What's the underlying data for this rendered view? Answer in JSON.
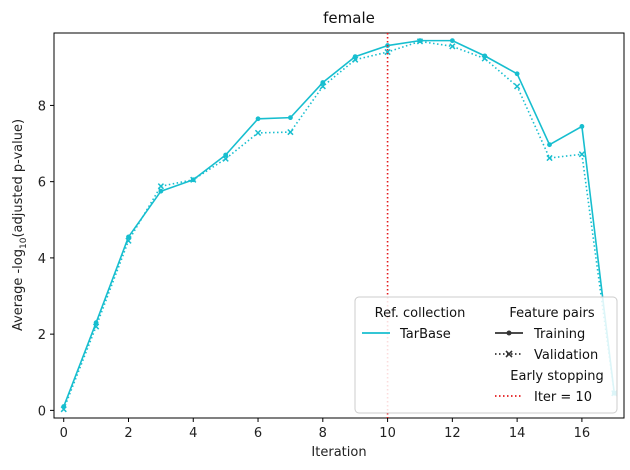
{
  "chart_data": {
    "type": "line",
    "title": "female",
    "xlabel": "Iteration",
    "ylabel_prefix": "Average -log",
    "ylabel_sub": "10",
    "ylabel_suffix": "(adjusted p-value)",
    "xlim": [
      -0.3,
      17.3
    ],
    "ylim": [
      -0.2,
      9.9
    ],
    "xticks": [
      0,
      2,
      4,
      6,
      8,
      10,
      12,
      14,
      16
    ],
    "yticks": [
      0,
      2,
      4,
      6,
      8
    ],
    "x": [
      0,
      1,
      2,
      3,
      4,
      5,
      6,
      7,
      8,
      9,
      10,
      11,
      12,
      13,
      14,
      15,
      16,
      17
    ],
    "series": [
      {
        "name": "TarBase Training",
        "style": "solid",
        "marker": "circle",
        "values": [
          0.1,
          2.3,
          4.55,
          5.75,
          6.05,
          6.7,
          7.65,
          7.68,
          8.6,
          9.28,
          9.57,
          9.7,
          9.7,
          9.3,
          8.83,
          6.97,
          7.45,
          0.45
        ]
      },
      {
        "name": "TarBase Validation",
        "style": "dotted",
        "marker": "x",
        "values": [
          0.03,
          2.2,
          4.45,
          5.88,
          6.05,
          6.6,
          7.28,
          7.3,
          8.5,
          9.2,
          9.4,
          9.68,
          9.55,
          9.23,
          8.5,
          6.62,
          6.72,
          0.45
        ]
      }
    ],
    "vline": {
      "x": 10,
      "color": "#e41a1c"
    },
    "line_color": "#17becf",
    "legend": {
      "position": "bottom-right",
      "col1_header": "Ref. collection",
      "col1_entry": "TarBase",
      "col2_header": "Feature pairs",
      "training_label": "Training",
      "validation_label": "Validation",
      "early_header": "Early stopping",
      "early_label": "Iter = 10"
    }
  }
}
